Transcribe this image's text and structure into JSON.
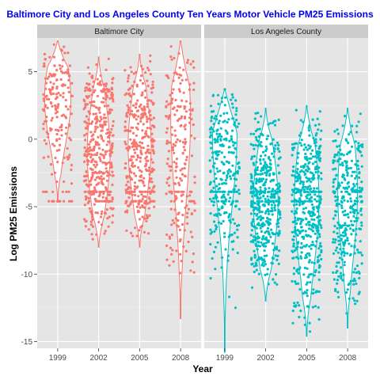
{
  "chart_data": {
    "type": "scatter",
    "subtype": "faceted jittered points with violin outlines",
    "title": "Baltimore City and Los Angeles County Ten Years Motor Vehicle PM25 Emissions",
    "xlabel": "Year",
    "ylabel": "Log PM25 Emissions",
    "x_categories": [
      "1999",
      "2002",
      "2005",
      "2008"
    ],
    "y_ticks": [
      5,
      0,
      -5,
      -10,
      -15
    ],
    "ylim": [
      -15.5,
      7.5
    ],
    "grid": true,
    "legend": "none",
    "facets": [
      {
        "name": "Baltimore City",
        "color": "#f8766d",
        "groups": [
          {
            "year": "1999",
            "min": -4.6,
            "max": 7.3,
            "peak": 3.0,
            "half_width": 0.32,
            "points": 190
          },
          {
            "year": "2002",
            "min": -8.0,
            "max": 6.1,
            "peak": -1.0,
            "half_width": 0.28,
            "points": 420
          },
          {
            "year": "2005",
            "min": -8.0,
            "max": 6.3,
            "peak": -0.5,
            "half_width": 0.28,
            "points": 380
          },
          {
            "year": "2008",
            "min": -13.3,
            "max": 7.3,
            "peak": 1.5,
            "half_width": 0.24,
            "points": 230
          }
        ]
      },
      {
        "name": "Los Angeles County",
        "color": "#00bfc4",
        "groups": [
          {
            "year": "1999",
            "min": -15.8,
            "max": 3.7,
            "peak": 0.5,
            "half_width": 0.3,
            "points": 300
          },
          {
            "year": "2002",
            "min": -12.0,
            "max": 2.3,
            "peak": -4.6,
            "half_width": 0.3,
            "points": 460
          },
          {
            "year": "2005",
            "min": -14.6,
            "max": 2.5,
            "peak": -4.6,
            "half_width": 0.3,
            "points": 480
          },
          {
            "year": "2008",
            "min": -14.0,
            "max": 2.3,
            "peak": -4.0,
            "half_width": 0.24,
            "points": 340
          }
        ]
      }
    ]
  }
}
